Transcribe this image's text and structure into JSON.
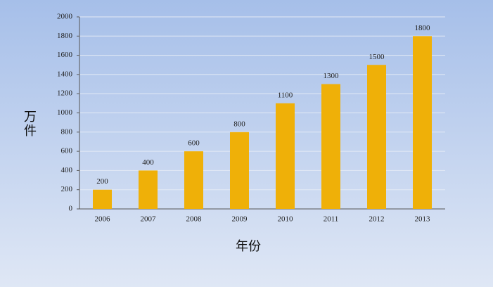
{
  "chart_data": {
    "type": "bar",
    "y_label": "万件",
    "x_label": "年份",
    "categories": [
      "2006",
      "2007",
      "2008",
      "2009",
      "2010",
      "2011",
      "2012",
      "2013"
    ],
    "values": [
      200,
      400,
      600,
      800,
      1100,
      1300,
      1500,
      1800
    ],
    "color": "#efb008",
    "ylim": [
      0,
      2000
    ],
    "yticks": [
      0,
      200,
      400,
      600,
      800,
      1000,
      1200,
      1400,
      1600,
      1800,
      2000
    ],
    "grid": true
  }
}
